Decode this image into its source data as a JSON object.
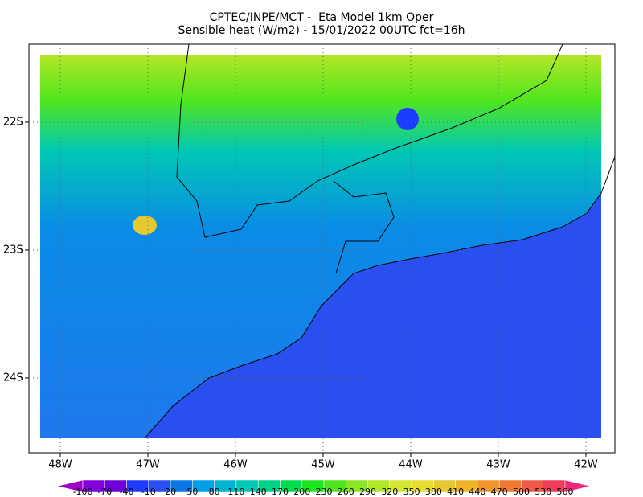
{
  "title": [
    "CPTEC/INPE/MCT -  Eta Model 1km Oper",
    "Sensible heat (W/m2) - 15/01/2022 00UTC fct=16h"
  ],
  "lon_labels": [
    "48W",
    "47W",
    "46W",
    "45W",
    "44W",
    "43W",
    "42W"
  ],
  "lat_labels": [
    "22S",
    "23S",
    "24S"
  ],
  "colorbar": {
    "levels": [
      -100,
      -70,
      -40,
      -10,
      20,
      50,
      80,
      110,
      140,
      170,
      200,
      230,
      260,
      290,
      320,
      350,
      380,
      410,
      440,
      470,
      500,
      530,
      560
    ],
    "colors": [
      "#a000c8",
      "#8200dc",
      "#6e00dc",
      "#1e3cff",
      "#2850f0",
      "#0a78e6",
      "#00a0e6",
      "#00b4d2",
      "#00c8b4",
      "#00d28c",
      "#00dc50",
      "#1ee61e",
      "#50e61e",
      "#8ce628",
      "#b4e628",
      "#d2e632",
      "#e6dc32",
      "#e6c832",
      "#f0b428",
      "#f0962d",
      "#f07832",
      "#f05a46",
      "#f03c5a",
      "#f0287d"
    ]
  }
}
